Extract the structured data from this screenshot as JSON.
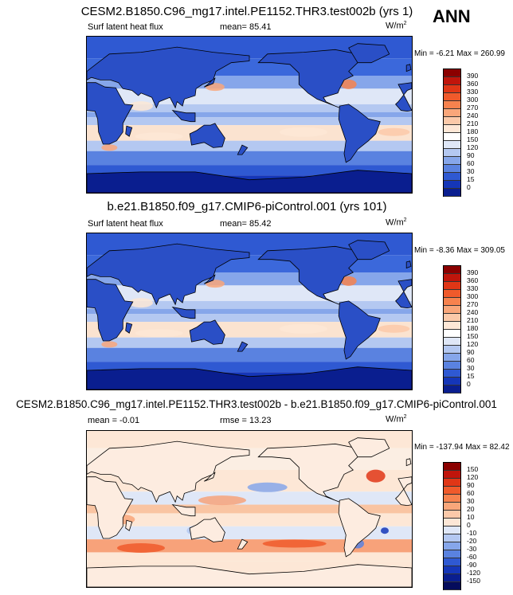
{
  "season": "ANN",
  "panels": [
    {
      "title": "CESM2.B1850.C96_mg17.intel.PE1152.THR3.test002b (yrs 1)",
      "left_label": "Surf latent heat flux",
      "center_label": "mean=  85.41",
      "units": "W/m",
      "units_exp": "2",
      "minmax": "Min =  -6.21 Max = 260.99"
    },
    {
      "title": "b.e21.B1850.f09_g17.CMIP6-piControl.001 (yrs 101)",
      "left_label": "Surf latent heat flux",
      "center_label": "mean=  85.42",
      "units": "W/m",
      "units_exp": "2",
      "minmax": "Min =  -8.36 Max = 309.05"
    },
    {
      "title": "CESM2.B1850.C96_mg17.intel.PE1152.THR3.test002b - b.e21.B1850.f09_g17.CMIP6-piControl.001",
      "left_label": "mean =  -0.01",
      "center_label": "rmse =  13.23",
      "units": "W/m",
      "units_exp": "2",
      "minmax": "Min = -137.94 Max =  82.42"
    }
  ],
  "chart_data": [
    {
      "type": "heatmap",
      "map": "global latitude-longitude, Pacific centered",
      "variable": "Surf latent heat flux",
      "colorbar_levels": [
        "390",
        "360",
        "330",
        "300",
        "270",
        "240",
        "210",
        "180",
        "150",
        "120",
        "90",
        "60",
        "30",
        "15",
        "0"
      ],
      "colorbar_colors": [
        "#8b0000",
        "#c0150b",
        "#e03616",
        "#f05a2b",
        "#f7824e",
        "#f9a67a",
        "#fbc9a9",
        "#fde7d6",
        "#ffffff",
        "#dfe7f7",
        "#b4c8f1",
        "#86a6ea",
        "#5a82e0",
        "#2f59d2",
        "#1536b8",
        "#0a1e8f"
      ],
      "min": -6.21,
      "max": 260.99,
      "mean": 85.41
    },
    {
      "type": "heatmap",
      "map": "global latitude-longitude, Pacific centered",
      "variable": "Surf latent heat flux",
      "colorbar_levels": [
        "390",
        "360",
        "330",
        "300",
        "270",
        "240",
        "210",
        "180",
        "150",
        "120",
        "90",
        "60",
        "30",
        "15",
        "0"
      ],
      "colorbar_colors": [
        "#8b0000",
        "#c0150b",
        "#e03616",
        "#f05a2b",
        "#f7824e",
        "#f9a67a",
        "#fbc9a9",
        "#fde7d6",
        "#ffffff",
        "#dfe7f7",
        "#b4c8f1",
        "#86a6ea",
        "#5a82e0",
        "#2f59d2",
        "#1536b8",
        "#0a1e8f"
      ],
      "min": -8.36,
      "max": 309.05,
      "mean": 85.42
    },
    {
      "type": "heatmap",
      "map": "global latitude-longitude, Pacific centered",
      "variable": "difference",
      "colorbar_levels": [
        "150",
        "120",
        "90",
        "60",
        "30",
        "20",
        "10",
        "0",
        "-10",
        "-20",
        "-30",
        "-60",
        "-90",
        "-120",
        "-150"
      ],
      "colorbar_colors": [
        "#8b0000",
        "#c0150b",
        "#e03616",
        "#f05a2b",
        "#f7824e",
        "#f9a67a",
        "#fbc9a9",
        "#fde7d6",
        "#dfe7f7",
        "#b4c8f1",
        "#86a6ea",
        "#5a82e0",
        "#2f59d2",
        "#1536b8",
        "#0a1e8f",
        "#050c5c"
      ],
      "min": -137.94,
      "max": 82.42,
      "mean": -0.01,
      "rmse": 13.23
    }
  ]
}
